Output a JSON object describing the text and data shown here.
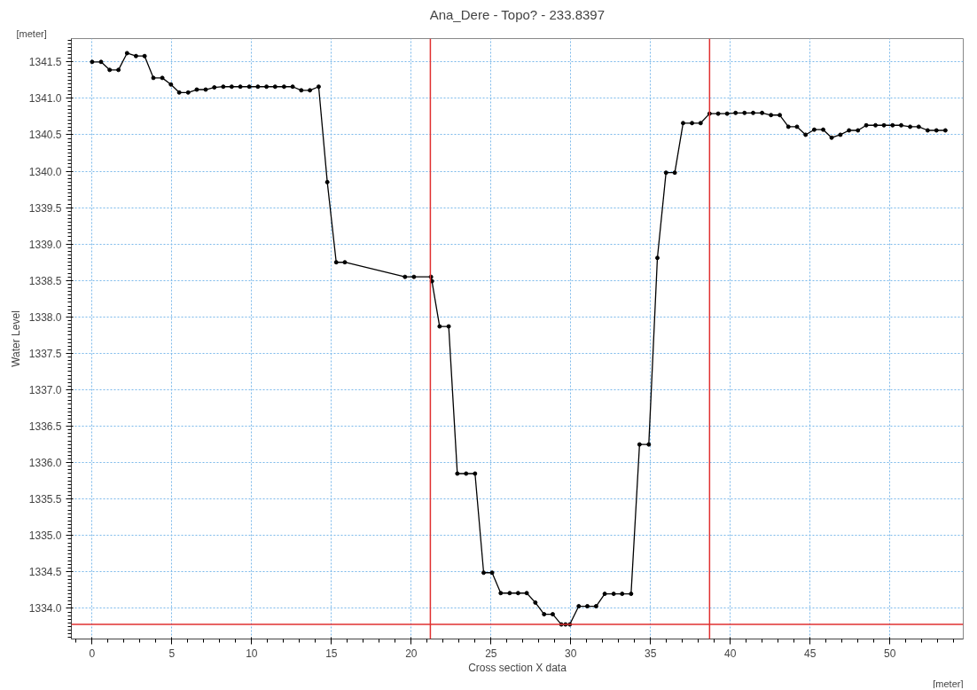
{
  "chart_data": {
    "type": "line",
    "title": "Ana_Dere - Topo? - 233.8397",
    "xlabel": "Cross section X data",
    "ylabel": "Water Level",
    "annotations": [
      "[meter]",
      "[meter]"
    ],
    "x": [
      0,
      0.56,
      1.1,
      1.65,
      2.19,
      2.75,
      3.29,
      3.84,
      4.4,
      4.94,
      5.46,
      6.02,
      6.56,
      7.12,
      7.66,
      8.22,
      8.75,
      9.29,
      9.85,
      10.39,
      10.93,
      11.47,
      12.03,
      12.57,
      13.11,
      13.65,
      14.2,
      14.74,
      15.3,
      15.84,
      19.61,
      20.17,
      21.24,
      21.3,
      21.78,
      22.35,
      22.89,
      23.44,
      24.0,
      24.54,
      25.07,
      25.61,
      26.17,
      26.7,
      27.24,
      27.78,
      28.33,
      28.87,
      29.41,
      29.67,
      29.94,
      30.5,
      31.04,
      31.59,
      32.13,
      32.69,
      33.22,
      33.78,
      34.31,
      34.89,
      35.43,
      35.97,
      36.52,
      37.04,
      37.6,
      38.14,
      38.7,
      39.24,
      39.8,
      40.33,
      40.89,
      41.43,
      41.99,
      42.55,
      43.1,
      43.64,
      44.18,
      44.72,
      45.26,
      45.82,
      46.35,
      46.9,
      47.44,
      48.0,
      48.52,
      49.1,
      49.63,
      50.17,
      50.71,
      51.27,
      51.81,
      52.37,
      52.92,
      53.48
    ],
    "series": [
      {
        "color": "#000000",
        "values": [
          1341.5,
          1341.5,
          1341.39,
          1341.39,
          1341.62,
          1341.58,
          1341.58,
          1341.28,
          1341.28,
          1341.19,
          1341.08,
          1341.08,
          1341.12,
          1341.12,
          1341.15,
          1341.16,
          1341.16,
          1341.16,
          1341.16,
          1341.16,
          1341.16,
          1341.16,
          1341.16,
          1341.16,
          1341.11,
          1341.11,
          1341.16,
          1339.85,
          1338.75,
          1338.75,
          1338.55,
          1338.55,
          1338.55,
          1338.49,
          1337.87,
          1337.87,
          1335.85,
          1335.85,
          1335.85,
          1334.49,
          1334.49,
          1334.21,
          1334.21,
          1334.21,
          1334.21,
          1334.08,
          1333.92,
          1333.92,
          1333.78,
          1333.78,
          1333.78,
          1334.03,
          1334.03,
          1334.03,
          1334.2,
          1334.2,
          1334.2,
          1334.2,
          1336.25,
          1336.25,
          1338.81,
          1339.98,
          1339.98,
          1340.66,
          1340.66,
          1340.66,
          1340.79,
          1340.79,
          1340.79,
          1340.8,
          1340.8,
          1340.8,
          1340.8,
          1340.77,
          1340.77,
          1340.61,
          1340.61,
          1340.5,
          1340.57,
          1340.57,
          1340.46,
          1340.5,
          1340.56,
          1340.56,
          1340.63,
          1340.63,
          1340.63,
          1340.63,
          1340.63,
          1340.61,
          1340.61,
          1340.56,
          1340.56,
          1340.56
        ]
      }
    ],
    "xlim": [
      -1.3,
      54.6
    ],
    "ylim": [
      1333.58,
      1341.82
    ],
    "xticks": [
      0,
      5,
      10,
      15,
      20,
      25,
      30,
      35,
      40,
      45,
      50
    ],
    "yticks": [
      {
        "value": 1334,
        "label": "1334.0"
      },
      {
        "value": 1334.5,
        "label": "1334.5"
      },
      {
        "value": 1335,
        "label": "1335.0"
      },
      {
        "value": 1335.5,
        "label": "1335.5"
      },
      {
        "value": 1336,
        "label": "1336.0"
      },
      {
        "value": 1336.5,
        "label": "1336.5"
      },
      {
        "value": 1337,
        "label": "1337.0"
      },
      {
        "value": 1337.5,
        "label": "1337.5"
      },
      {
        "value": 1338,
        "label": "1338.0"
      },
      {
        "value": 1338.5,
        "label": "1338.5"
      },
      {
        "value": 1339,
        "label": "1339.0"
      },
      {
        "value": 1339.5,
        "label": "1339.5"
      },
      {
        "value": 1340,
        "label": "1340.0"
      },
      {
        "value": 1340.5,
        "label": "1340.5"
      },
      {
        "value": 1341,
        "label": "1341.0"
      },
      {
        "value": 1341.5,
        "label": "1341.5"
      }
    ],
    "ref_lines": [
      {
        "axis": "x",
        "value": 21.2,
        "color": "#e03030"
      },
      {
        "axis": "x",
        "value": 38.7,
        "color": "#e03030"
      },
      {
        "axis": "y",
        "value": 1333.78,
        "color": "#e03030"
      }
    ],
    "grid": true,
    "marker": "circle",
    "line_style": "solid"
  }
}
